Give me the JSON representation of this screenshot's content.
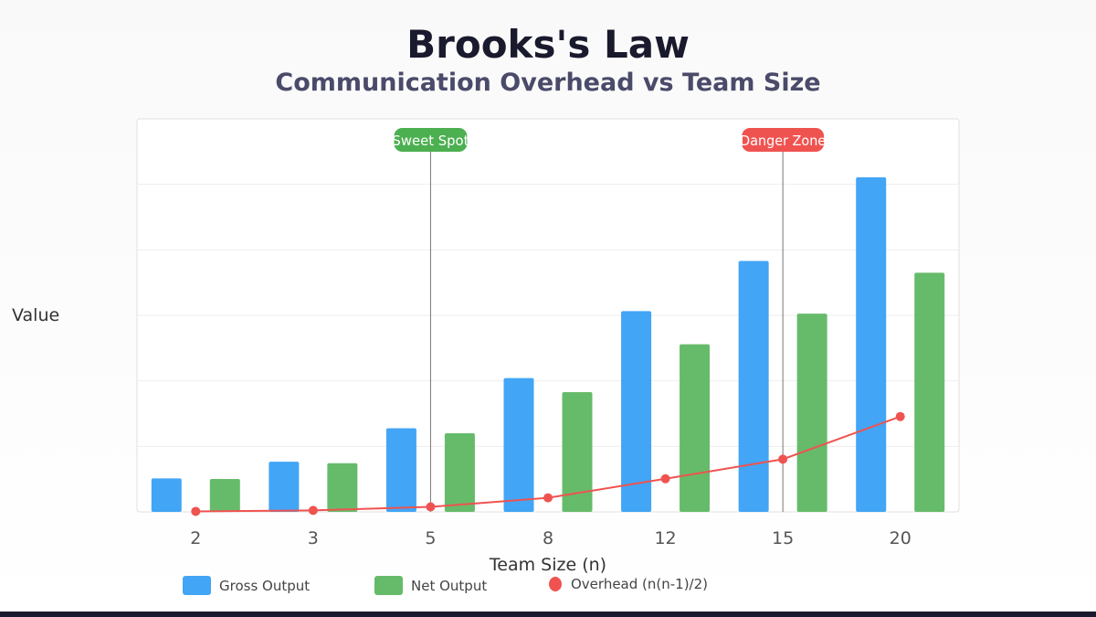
{
  "title": "Brooks's Law",
  "subtitle": "Communication Overhead vs Team Size",
  "chart_data": {
    "type": "bar",
    "title": "Brooks's Law",
    "subtitle": "Communication Overhead vs Team Size",
    "xlabel": "Team Size (n)",
    "ylabel": "Value",
    "categories": [
      "2",
      "3",
      "5",
      "8",
      "12",
      "15",
      "20"
    ],
    "ylim": [
      0,
      235
    ],
    "grid": true,
    "legend_placement": "bottom",
    "series": [
      {
        "name": "Gross Output",
        "type": "bar",
        "color": "#42a5f5",
        "values": [
          20,
          30,
          50,
          80,
          120,
          150,
          200
        ]
      },
      {
        "name": "Net Output",
        "type": "bar",
        "color": "#66bb6a",
        "values": [
          19.7,
          29.1,
          47,
          71.6,
          100.2,
          118.5,
          143
        ]
      },
      {
        "name": "Overhead (n(n-1)/2)",
        "type": "line",
        "color": "#ef5350",
        "values": [
          0.3,
          0.9,
          3,
          8.4,
          19.8,
          31.5,
          57
        ]
      }
    ],
    "annotations": [
      {
        "label": "Sweet Spot",
        "category": "5",
        "color": "#4caf50"
      },
      {
        "label": "Danger Zone",
        "category": "15",
        "color": "#ef5350"
      }
    ]
  }
}
